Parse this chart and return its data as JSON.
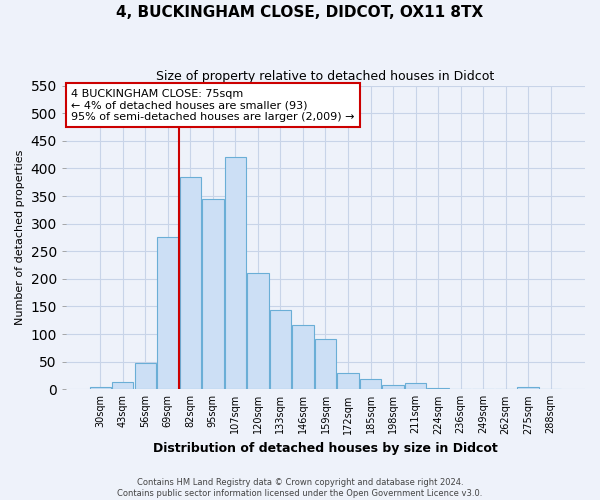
{
  "title": "4, BUCKINGHAM CLOSE, DIDCOT, OX11 8TX",
  "subtitle": "Size of property relative to detached houses in Didcot",
  "xlabel": "Distribution of detached houses by size in Didcot",
  "ylabel": "Number of detached properties",
  "categories": [
    "30sqm",
    "43sqm",
    "56sqm",
    "69sqm",
    "82sqm",
    "95sqm",
    "107sqm",
    "120sqm",
    "133sqm",
    "146sqm",
    "159sqm",
    "172sqm",
    "185sqm",
    "198sqm",
    "211sqm",
    "224sqm",
    "236sqm",
    "249sqm",
    "262sqm",
    "275sqm",
    "288sqm"
  ],
  "values": [
    5,
    13,
    48,
    275,
    385,
    345,
    420,
    210,
    144,
    116,
    91,
    30,
    19,
    7,
    11,
    2,
    1,
    0,
    0,
    4,
    0
  ],
  "bar_color": "#ccdff5",
  "bar_edge_color": "#6aaed6",
  "grid_color": "#c8d4e8",
  "background_color": "#eef2fa",
  "vline_x_index": 4,
  "vline_color": "#cc0000",
  "annotation_text": "4 BUCKINGHAM CLOSE: 75sqm\n← 4% of detached houses are smaller (93)\n95% of semi-detached houses are larger (2,009) →",
  "annotation_box_color": "#ffffff",
  "annotation_box_edge": "#cc0000",
  "ylim": [
    0,
    550
  ],
  "yticks": [
    0,
    50,
    100,
    150,
    200,
    250,
    300,
    350,
    400,
    450,
    500,
    550
  ],
  "footer_line1": "Contains HM Land Registry data © Crown copyright and database right 2024.",
  "footer_line2": "Contains public sector information licensed under the Open Government Licence v3.0."
}
